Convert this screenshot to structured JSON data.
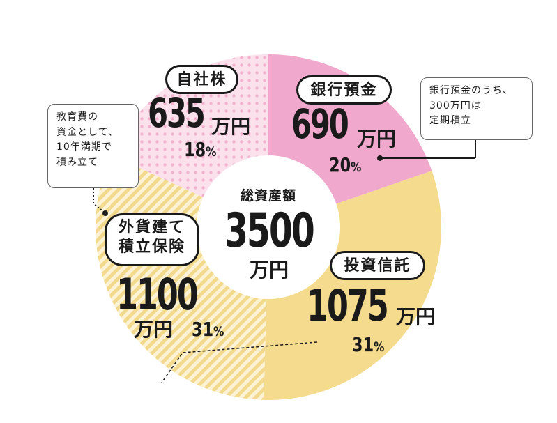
{
  "chart_data": {
    "type": "pie",
    "variant": "donut",
    "unit": "万円",
    "center": {
      "label": "総資産額",
      "value": "3500",
      "unit": "万円"
    },
    "slices": [
      {
        "label": "銀行預金",
        "amount": 690,
        "amount_text": "690",
        "percent": 20,
        "color": "#f0a8cc",
        "pattern": "solid",
        "note": [
          "銀行預金のうち、",
          "300万円は",
          "定期積立"
        ]
      },
      {
        "label": "投資信託",
        "amount": 1075,
        "amount_text": "1075",
        "percent": 31,
        "color": "#f5db8e",
        "pattern": "solid"
      },
      {
        "label": "外貨建て積立保険",
        "label_lines": [
          "外貨建て",
          "積立保険"
        ],
        "amount": 1100,
        "amount_text": "1100",
        "percent": 31,
        "color": "#f5db8e",
        "pattern": "diagonal-stripes",
        "note": [
          "教育費の",
          "資金として、",
          "10年満期で",
          "積み立て"
        ]
      },
      {
        "label": "自社株",
        "amount": 635,
        "amount_text": "635",
        "percent": 18,
        "color": "#f7cfe0",
        "pattern": "dots"
      }
    ]
  }
}
